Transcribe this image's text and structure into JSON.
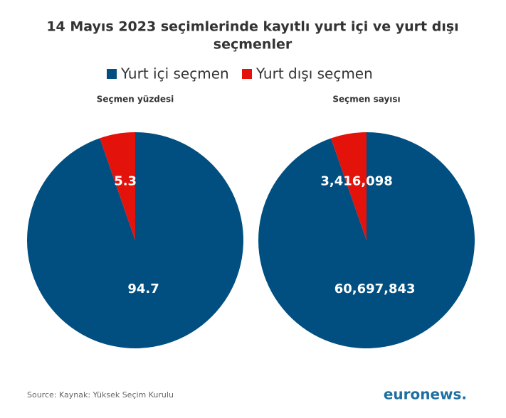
{
  "header": {
    "title": [
      "14 Mayıs 2023 seçimlerinde kayıtlı yurt içi ve yurt dışı",
      "seçmenler"
    ]
  },
  "legend": [
    {
      "name": "Yurt içi seçmen",
      "color": "#004f80"
    },
    {
      "name": "Yurt dışı seçmen",
      "color": "#e3120b"
    }
  ],
  "chart_data": [
    {
      "type": "pie",
      "title": "Seçmen yüzdesi",
      "values": [
        94.7,
        5.3
      ]
    },
    {
      "type": "pie",
      "title": "Seçmen sayısı",
      "values": [
        60697843,
        3416098
      ],
      "value_labels": [
        "60,697,843",
        "3,416,098"
      ]
    }
  ],
  "footer": {
    "source": "Source: Kaynak: Yüksek Seçim Kurulu",
    "logo": "euronews."
  }
}
